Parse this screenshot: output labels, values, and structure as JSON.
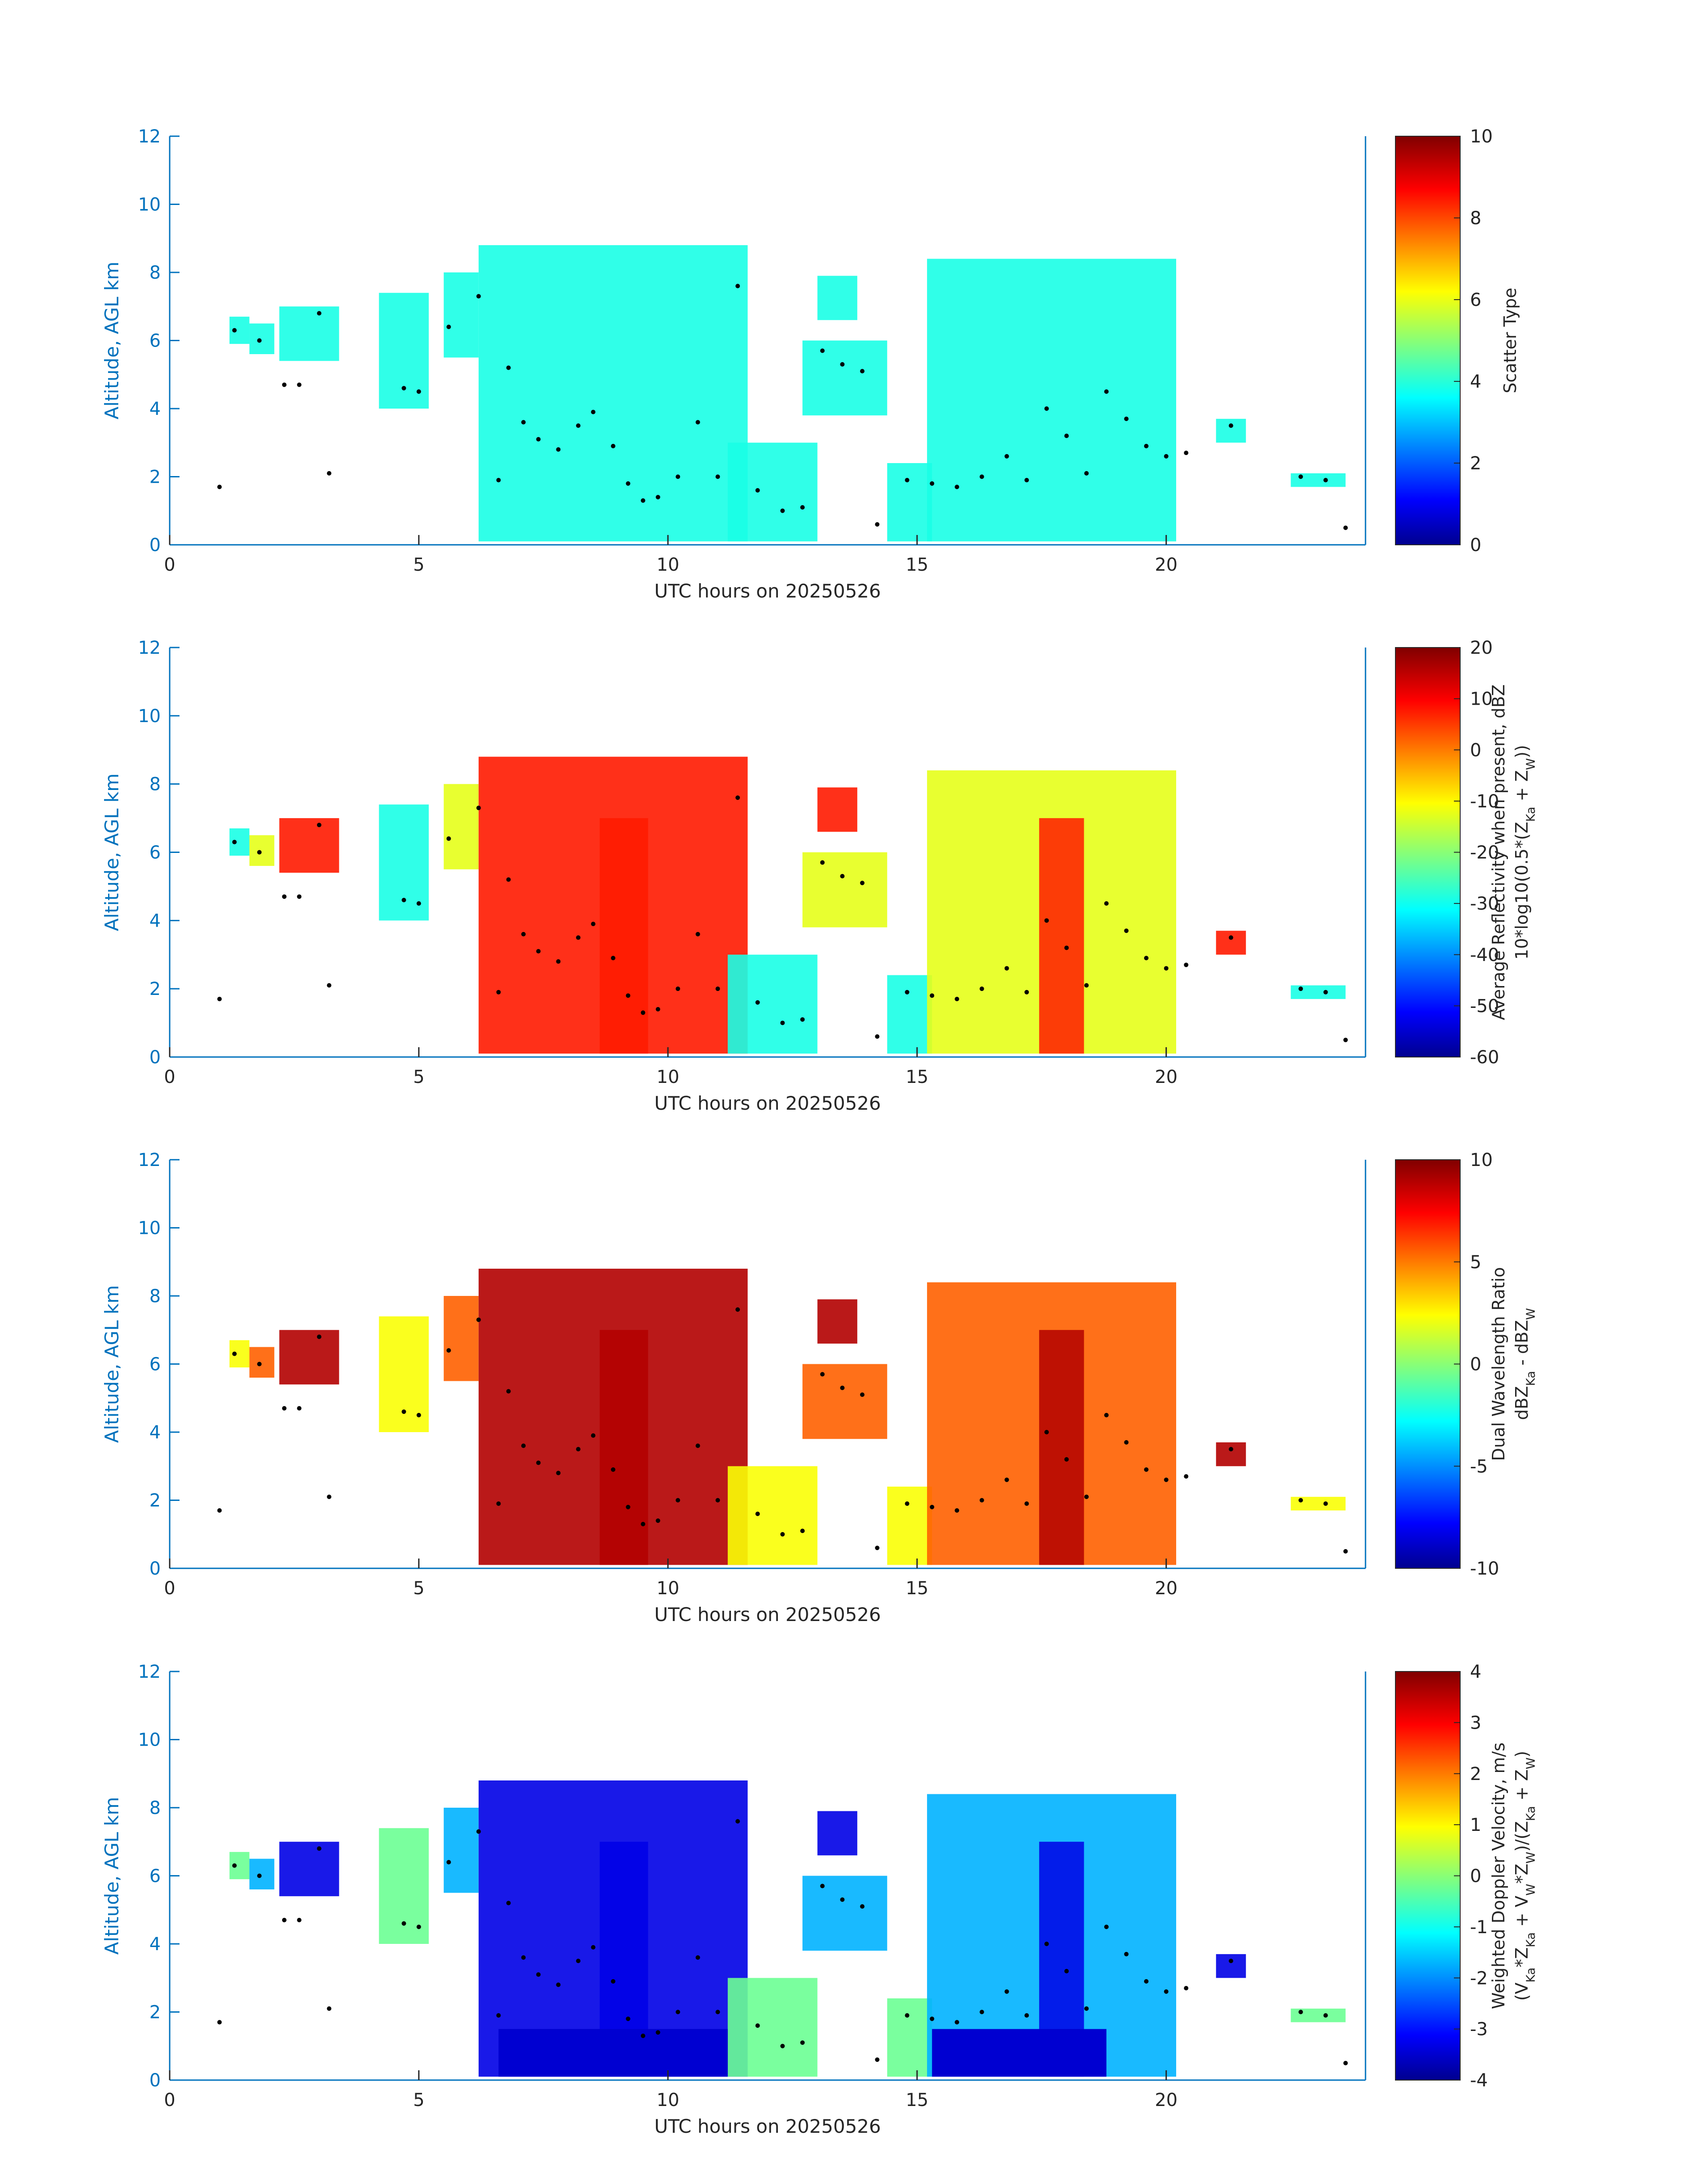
{
  "figure": {
    "date": "20250526",
    "xlabel": "UTC hours on 20250526",
    "ylabel": "Altitude, AGL km"
  },
  "chart_data": [
    {
      "type": "heatmap",
      "xlabel": "UTC hours on 20250526",
      "ylabel": "Altitude, AGL km",
      "xlim": [
        0,
        24
      ],
      "ylim": [
        0,
        12
      ],
      "xticks": [
        0,
        5,
        10,
        15,
        20
      ],
      "yticks": [
        0,
        2,
        4,
        6,
        8,
        10,
        12
      ],
      "colorbar": {
        "label_lines": [
          "Scatter Type"
        ],
        "range": [
          0,
          10
        ],
        "ticks": [
          0,
          2,
          4,
          6,
          8,
          10
        ],
        "tick_labels": [
          "0",
          "2",
          "4",
          "6",
          "8",
          "10"
        ],
        "colormap": "jet"
      }
    },
    {
      "type": "heatmap",
      "xlabel": "UTC hours on 20250526",
      "ylabel": "Altitude, AGL km",
      "xlim": [
        0,
        24
      ],
      "ylim": [
        0,
        12
      ],
      "xticks": [
        0,
        5,
        10,
        15,
        20
      ],
      "yticks": [
        0,
        2,
        4,
        6,
        8,
        10,
        12
      ],
      "colorbar": {
        "label_lines": [
          "Average Reflectivity when present, dBZ",
          "10*log10(0.5*(Z_Ka + Z_W))"
        ],
        "range": [
          -60,
          20
        ],
        "ticks": [
          -60,
          -50,
          -40,
          -30,
          -20,
          -10,
          0,
          10,
          20
        ],
        "tick_labels": [
          "-60",
          "-50",
          "-40",
          "-30",
          "-20",
          "-10",
          "0",
          "10",
          "20"
        ],
        "colormap": "jet"
      }
    },
    {
      "type": "heatmap",
      "xlabel": "UTC hours on 20250526",
      "ylabel": "Altitude, AGL km",
      "xlim": [
        0,
        24
      ],
      "ylim": [
        0,
        12
      ],
      "xticks": [
        0,
        5,
        10,
        15,
        20
      ],
      "yticks": [
        0,
        2,
        4,
        6,
        8,
        10,
        12
      ],
      "colorbar": {
        "label_lines": [
          "Dual Wavelength Ratio",
          "dBZ_Ka - dBZ_W"
        ],
        "range": [
          -10,
          10
        ],
        "ticks": [
          -10,
          -5,
          0,
          5,
          10
        ],
        "tick_labels": [
          "-10",
          "-5",
          "0",
          "5",
          "10"
        ],
        "colormap": "jet"
      }
    },
    {
      "type": "heatmap",
      "xlabel": "UTC hours on 20250526",
      "ylabel": "Altitude, AGL km",
      "xlim": [
        0,
        24
      ],
      "ylim": [
        0,
        12
      ],
      "xticks": [
        0,
        5,
        10,
        15,
        20
      ],
      "yticks": [
        0,
        2,
        4,
        6,
        8,
        10,
        12
      ],
      "colorbar": {
        "label_lines": [
          "Weighted Doppler Velocity, m/s",
          "(V_Ka*Z_Ka + V_W*Z_W)/(Z_Ka + Z_W)"
        ],
        "range": [
          -4,
          4
        ],
        "ticks": [
          -4,
          -3,
          -2,
          -1,
          0,
          1,
          2,
          3,
          4
        ],
        "tick_labels": [
          "-4",
          "-3",
          "-2",
          "-1",
          "0",
          "1",
          "2",
          "3",
          "4"
        ],
        "colormap": "jet"
      }
    }
  ]
}
